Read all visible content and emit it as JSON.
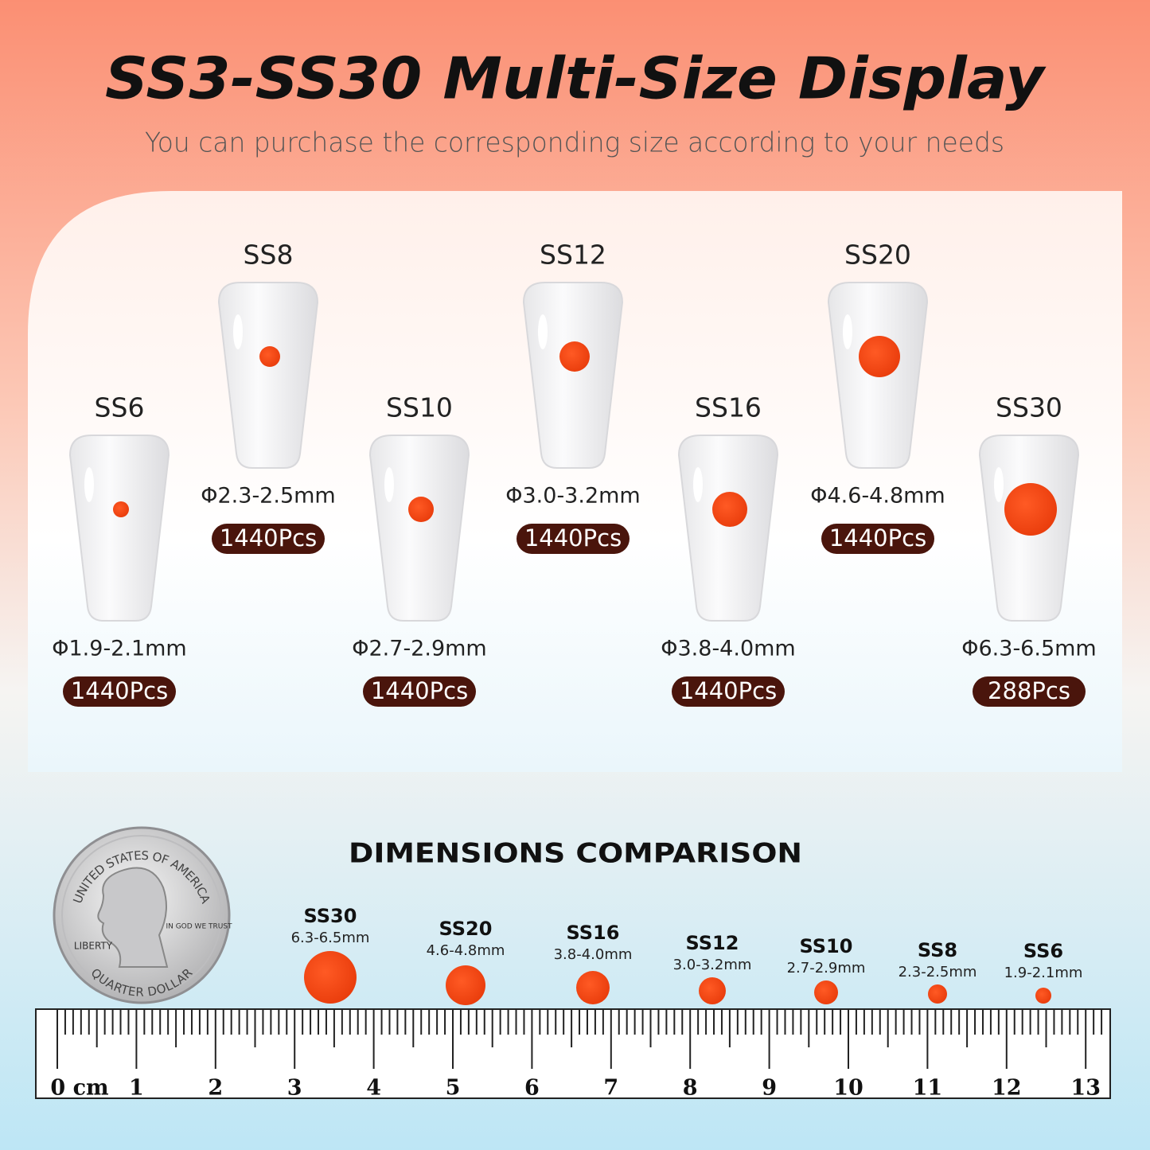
{
  "header": {
    "title": "SS3-SS30 Multi-Size Display",
    "subtitle": "You can purchase the corresponding size according to your needs"
  },
  "sizes": [
    {
      "label": "SS6",
      "diameter": "Φ1.9-2.1mm",
      "pieces": "1440Pcs"
    },
    {
      "label": "SS8",
      "diameter": "Φ2.3-2.5mm",
      "pieces": "1440Pcs"
    },
    {
      "label": "SS10",
      "diameter": "Φ2.7-2.9mm",
      "pieces": "1440Pcs"
    },
    {
      "label": "SS12",
      "diameter": "Φ3.0-3.2mm",
      "pieces": "1440Pcs"
    },
    {
      "label": "SS16",
      "diameter": "Φ3.8-4.0mm",
      "pieces": "1440Pcs"
    },
    {
      "label": "SS20",
      "diameter": "Φ4.6-4.8mm",
      "pieces": "1440Pcs"
    },
    {
      "label": "SS30",
      "diameter": "Φ6.3-6.5mm",
      "pieces": "288Pcs"
    }
  ],
  "comparison": {
    "title": "DIMENSIONS COMPARISON",
    "items": [
      {
        "label": "SS30",
        "size": "6.3-6.5mm"
      },
      {
        "label": "SS20",
        "size": "4.6-4.8mm"
      },
      {
        "label": "SS16",
        "size": "3.8-4.0mm"
      },
      {
        "label": "SS12",
        "size": "3.0-3.2mm"
      },
      {
        "label": "SS10",
        "size": "2.7-2.9mm"
      },
      {
        "label": "SS8",
        "size": "2.3-2.5mm"
      },
      {
        "label": "SS6",
        "size": "1.9-2.1mm"
      }
    ]
  },
  "coin": {
    "top": "UNITED STATES OF AMERICA",
    "bottom": "QUARTER DOLLAR",
    "left": "LIBERTY",
    "motto": "IN GOD WE TRUST"
  },
  "ruler": {
    "labels": [
      "0 cm",
      "1",
      "2",
      "3",
      "4",
      "5",
      "6",
      "7",
      "8",
      "9",
      "10",
      "11",
      "12",
      "13"
    ]
  }
}
